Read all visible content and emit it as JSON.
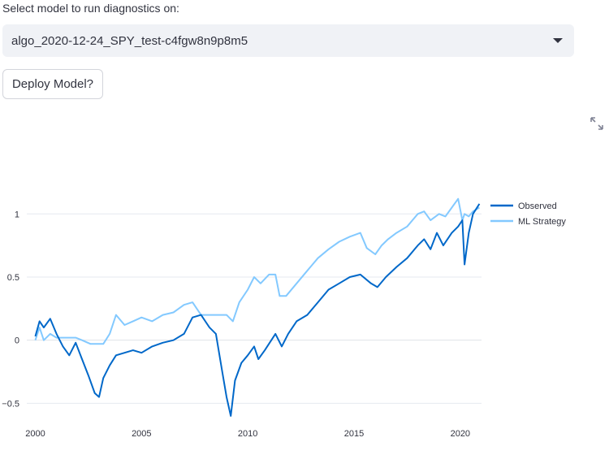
{
  "selector": {
    "label": "Select model to run diagnostics on:",
    "value": "algo_2020-12-24_SPY_test-c4fgw8n9p8m5"
  },
  "deploy": {
    "label": "Deploy Model?"
  },
  "icons": {
    "expand": "expand-icon",
    "dropdown": "chevron-down-icon"
  },
  "colors": {
    "observed": "#0068c9",
    "strategy": "#83c9ff",
    "grid": "#e6e9ef",
    "text": "#31333f"
  },
  "chart_data": {
    "type": "line",
    "title": "",
    "xlabel": "",
    "ylabel": "",
    "xlim": [
      1999.6,
      2021.0
    ],
    "ylim": [
      -0.62,
      1.15
    ],
    "xticks": [
      2000,
      2005,
      2010,
      2015,
      2020
    ],
    "yticks": [
      -0.5,
      0,
      0.5,
      1
    ],
    "ytick_labels": [
      "−0.5",
      "0",
      "0.5",
      "1"
    ],
    "grid": true,
    "legend_position": "top-right",
    "series": [
      {
        "name": "Observed",
        "x": [
          2000.0,
          2000.2,
          2000.4,
          2000.7,
          2001.0,
          2001.3,
          2001.6,
          2001.9,
          2002.2,
          2002.5,
          2002.8,
          2003.0,
          2003.2,
          2003.5,
          2003.8,
          2004.2,
          2004.6,
          2005.0,
          2005.5,
          2006.0,
          2006.5,
          2007.0,
          2007.4,
          2007.8,
          2008.2,
          2008.5,
          2008.8,
          2009.0,
          2009.2,
          2009.4,
          2009.7,
          2010.0,
          2010.3,
          2010.5,
          2010.8,
          2011.3,
          2011.6,
          2011.9,
          2012.3,
          2012.8,
          2013.3,
          2013.8,
          2014.3,
          2014.8,
          2015.3,
          2015.8,
          2016.1,
          2016.5,
          2017.0,
          2017.5,
          2018.0,
          2018.3,
          2018.6,
          2018.9,
          2019.2,
          2019.6,
          2019.9,
          2020.1,
          2020.2,
          2020.4,
          2020.6,
          2020.9
        ],
        "values": [
          0.03,
          0.15,
          0.1,
          0.17,
          0.05,
          -0.05,
          -0.12,
          -0.02,
          -0.15,
          -0.28,
          -0.42,
          -0.45,
          -0.3,
          -0.2,
          -0.12,
          -0.1,
          -0.08,
          -0.1,
          -0.05,
          -0.02,
          0.0,
          0.05,
          0.18,
          0.2,
          0.1,
          0.05,
          -0.25,
          -0.45,
          -0.6,
          -0.32,
          -0.18,
          -0.12,
          -0.05,
          -0.15,
          -0.08,
          0.05,
          -0.05,
          0.05,
          0.15,
          0.2,
          0.3,
          0.4,
          0.45,
          0.5,
          0.52,
          0.45,
          0.42,
          0.5,
          0.58,
          0.65,
          0.75,
          0.8,
          0.72,
          0.85,
          0.75,
          0.85,
          0.9,
          0.95,
          0.6,
          0.85,
          1.0,
          1.08
        ]
      },
      {
        "name": "ML Strategy",
        "x": [
          2000.0,
          2000.2,
          2000.4,
          2000.7,
          2001.0,
          2001.3,
          2001.6,
          2001.9,
          2002.2,
          2002.6,
          2003.2,
          2003.5,
          2003.8,
          2004.2,
          2004.6,
          2005.0,
          2005.5,
          2006.0,
          2006.5,
          2007.0,
          2007.4,
          2007.8,
          2008.2,
          2008.6,
          2009.0,
          2009.3,
          2009.6,
          2010.0,
          2010.3,
          2010.6,
          2011.0,
          2011.3,
          2011.5,
          2011.8,
          2012.3,
          2012.8,
          2013.3,
          2013.8,
          2014.3,
          2014.8,
          2015.3,
          2015.6,
          2016.0,
          2016.3,
          2016.6,
          2017.0,
          2017.5,
          2018.0,
          2018.3,
          2018.6,
          2019.0,
          2019.3,
          2019.6,
          2019.9,
          2020.1,
          2020.2,
          2020.4,
          2020.6,
          2020.9
        ],
        "values": [
          0.0,
          0.1,
          0.0,
          0.05,
          0.02,
          0.02,
          0.02,
          0.02,
          0.0,
          -0.03,
          -0.03,
          0.05,
          0.2,
          0.12,
          0.15,
          0.18,
          0.15,
          0.2,
          0.22,
          0.28,
          0.3,
          0.2,
          0.2,
          0.2,
          0.2,
          0.15,
          0.3,
          0.4,
          0.5,
          0.45,
          0.52,
          0.52,
          0.35,
          0.35,
          0.45,
          0.55,
          0.65,
          0.72,
          0.78,
          0.82,
          0.85,
          0.73,
          0.68,
          0.75,
          0.8,
          0.85,
          0.9,
          1.0,
          1.02,
          0.95,
          1.0,
          0.98,
          1.05,
          1.12,
          0.95,
          1.0,
          0.98,
          1.02,
          1.05
        ]
      }
    ]
  }
}
